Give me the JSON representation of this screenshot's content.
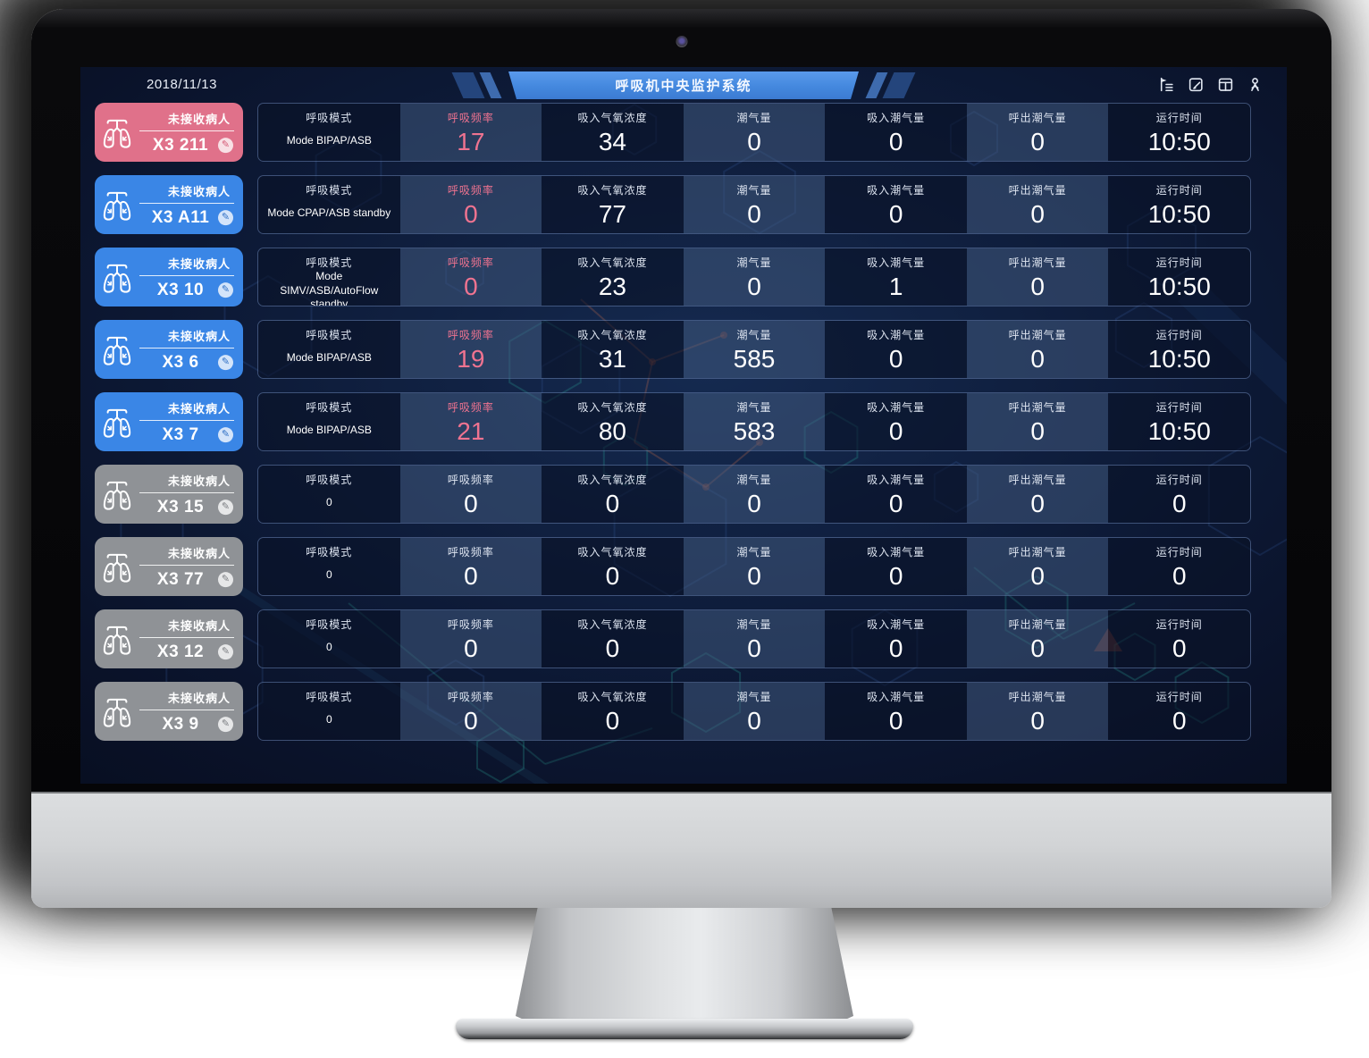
{
  "window": {
    "date": "2018/11/13",
    "title": "呼吸机中央监护系统"
  },
  "toolbar": {
    "icons": [
      {
        "name": "collapse-menu-icon"
      },
      {
        "name": "edit-note-icon"
      },
      {
        "name": "layout-window-icon"
      },
      {
        "name": "user-icon"
      }
    ]
  },
  "table": {
    "columns": [
      "呼吸模式",
      "呼吸频率",
      "吸入气氧浓度",
      "潮气量",
      "吸入潮气量",
      "呼出潮气量",
      "运行时间"
    ]
  },
  "rows": [
    {
      "id": "X3 211",
      "status": "未接收病人",
      "state": "alarm",
      "values": {
        "mode": "Mode BIPAP/ASB",
        "rate": "17",
        "fio2": "34",
        "tidal": "0",
        "tidal_in": "0",
        "tidal_out": "0",
        "runtime": "10:50"
      }
    },
    {
      "id": "X3 A11",
      "status": "未接收病人",
      "state": "active",
      "values": {
        "mode": "Mode CPAP/ASB standby",
        "rate": "0",
        "fio2": "77",
        "tidal": "0",
        "tidal_in": "0",
        "tidal_out": "0",
        "runtime": "10:50"
      }
    },
    {
      "id": "X3 10",
      "status": "未接收病人",
      "state": "active",
      "values": {
        "mode": "Mode SIMV/ASB/AutoFlow standby",
        "rate": "0",
        "fio2": "23",
        "tidal": "0",
        "tidal_in": "1",
        "tidal_out": "0",
        "runtime": "10:50"
      }
    },
    {
      "id": "X3 6",
      "status": "未接收病人",
      "state": "active",
      "values": {
        "mode": "Mode BIPAP/ASB",
        "rate": "19",
        "fio2": "31",
        "tidal": "585",
        "tidal_in": "0",
        "tidal_out": "0",
        "runtime": "10:50"
      }
    },
    {
      "id": "X3 7",
      "status": "未接收病人",
      "state": "active",
      "values": {
        "mode": "Mode BIPAP/ASB",
        "rate": "21",
        "fio2": "80",
        "tidal": "583",
        "tidal_in": "0",
        "tidal_out": "0",
        "runtime": "10:50"
      }
    },
    {
      "id": "X3 15",
      "status": "未接收病人",
      "state": "offline",
      "values": {
        "mode": "0",
        "rate": "0",
        "fio2": "0",
        "tidal": "0",
        "tidal_in": "0",
        "tidal_out": "0",
        "runtime": "0"
      }
    },
    {
      "id": "X3 77",
      "status": "未接收病人",
      "state": "offline",
      "values": {
        "mode": "0",
        "rate": "0",
        "fio2": "0",
        "tidal": "0",
        "tidal_in": "0",
        "tidal_out": "0",
        "runtime": "0"
      }
    },
    {
      "id": "X3 12",
      "status": "未接收病人",
      "state": "offline",
      "values": {
        "mode": "0",
        "rate": "0",
        "fio2": "0",
        "tidal": "0",
        "tidal_in": "0",
        "tidal_out": "0",
        "runtime": "0"
      }
    },
    {
      "id": "X3 9",
      "status": "未接收病人",
      "state": "offline",
      "values": {
        "mode": "0",
        "rate": "0",
        "fio2": "0",
        "tidal": "0",
        "tidal_in": "0",
        "tidal_out": "0",
        "runtime": "0"
      }
    }
  ],
  "colors": {
    "alarm_pink": "#e0718a",
    "active_blue": "#3a86e6",
    "offline_gray": "#8f9296",
    "rate_pink": "#ef7390",
    "banner_blue": "#4488de"
  }
}
